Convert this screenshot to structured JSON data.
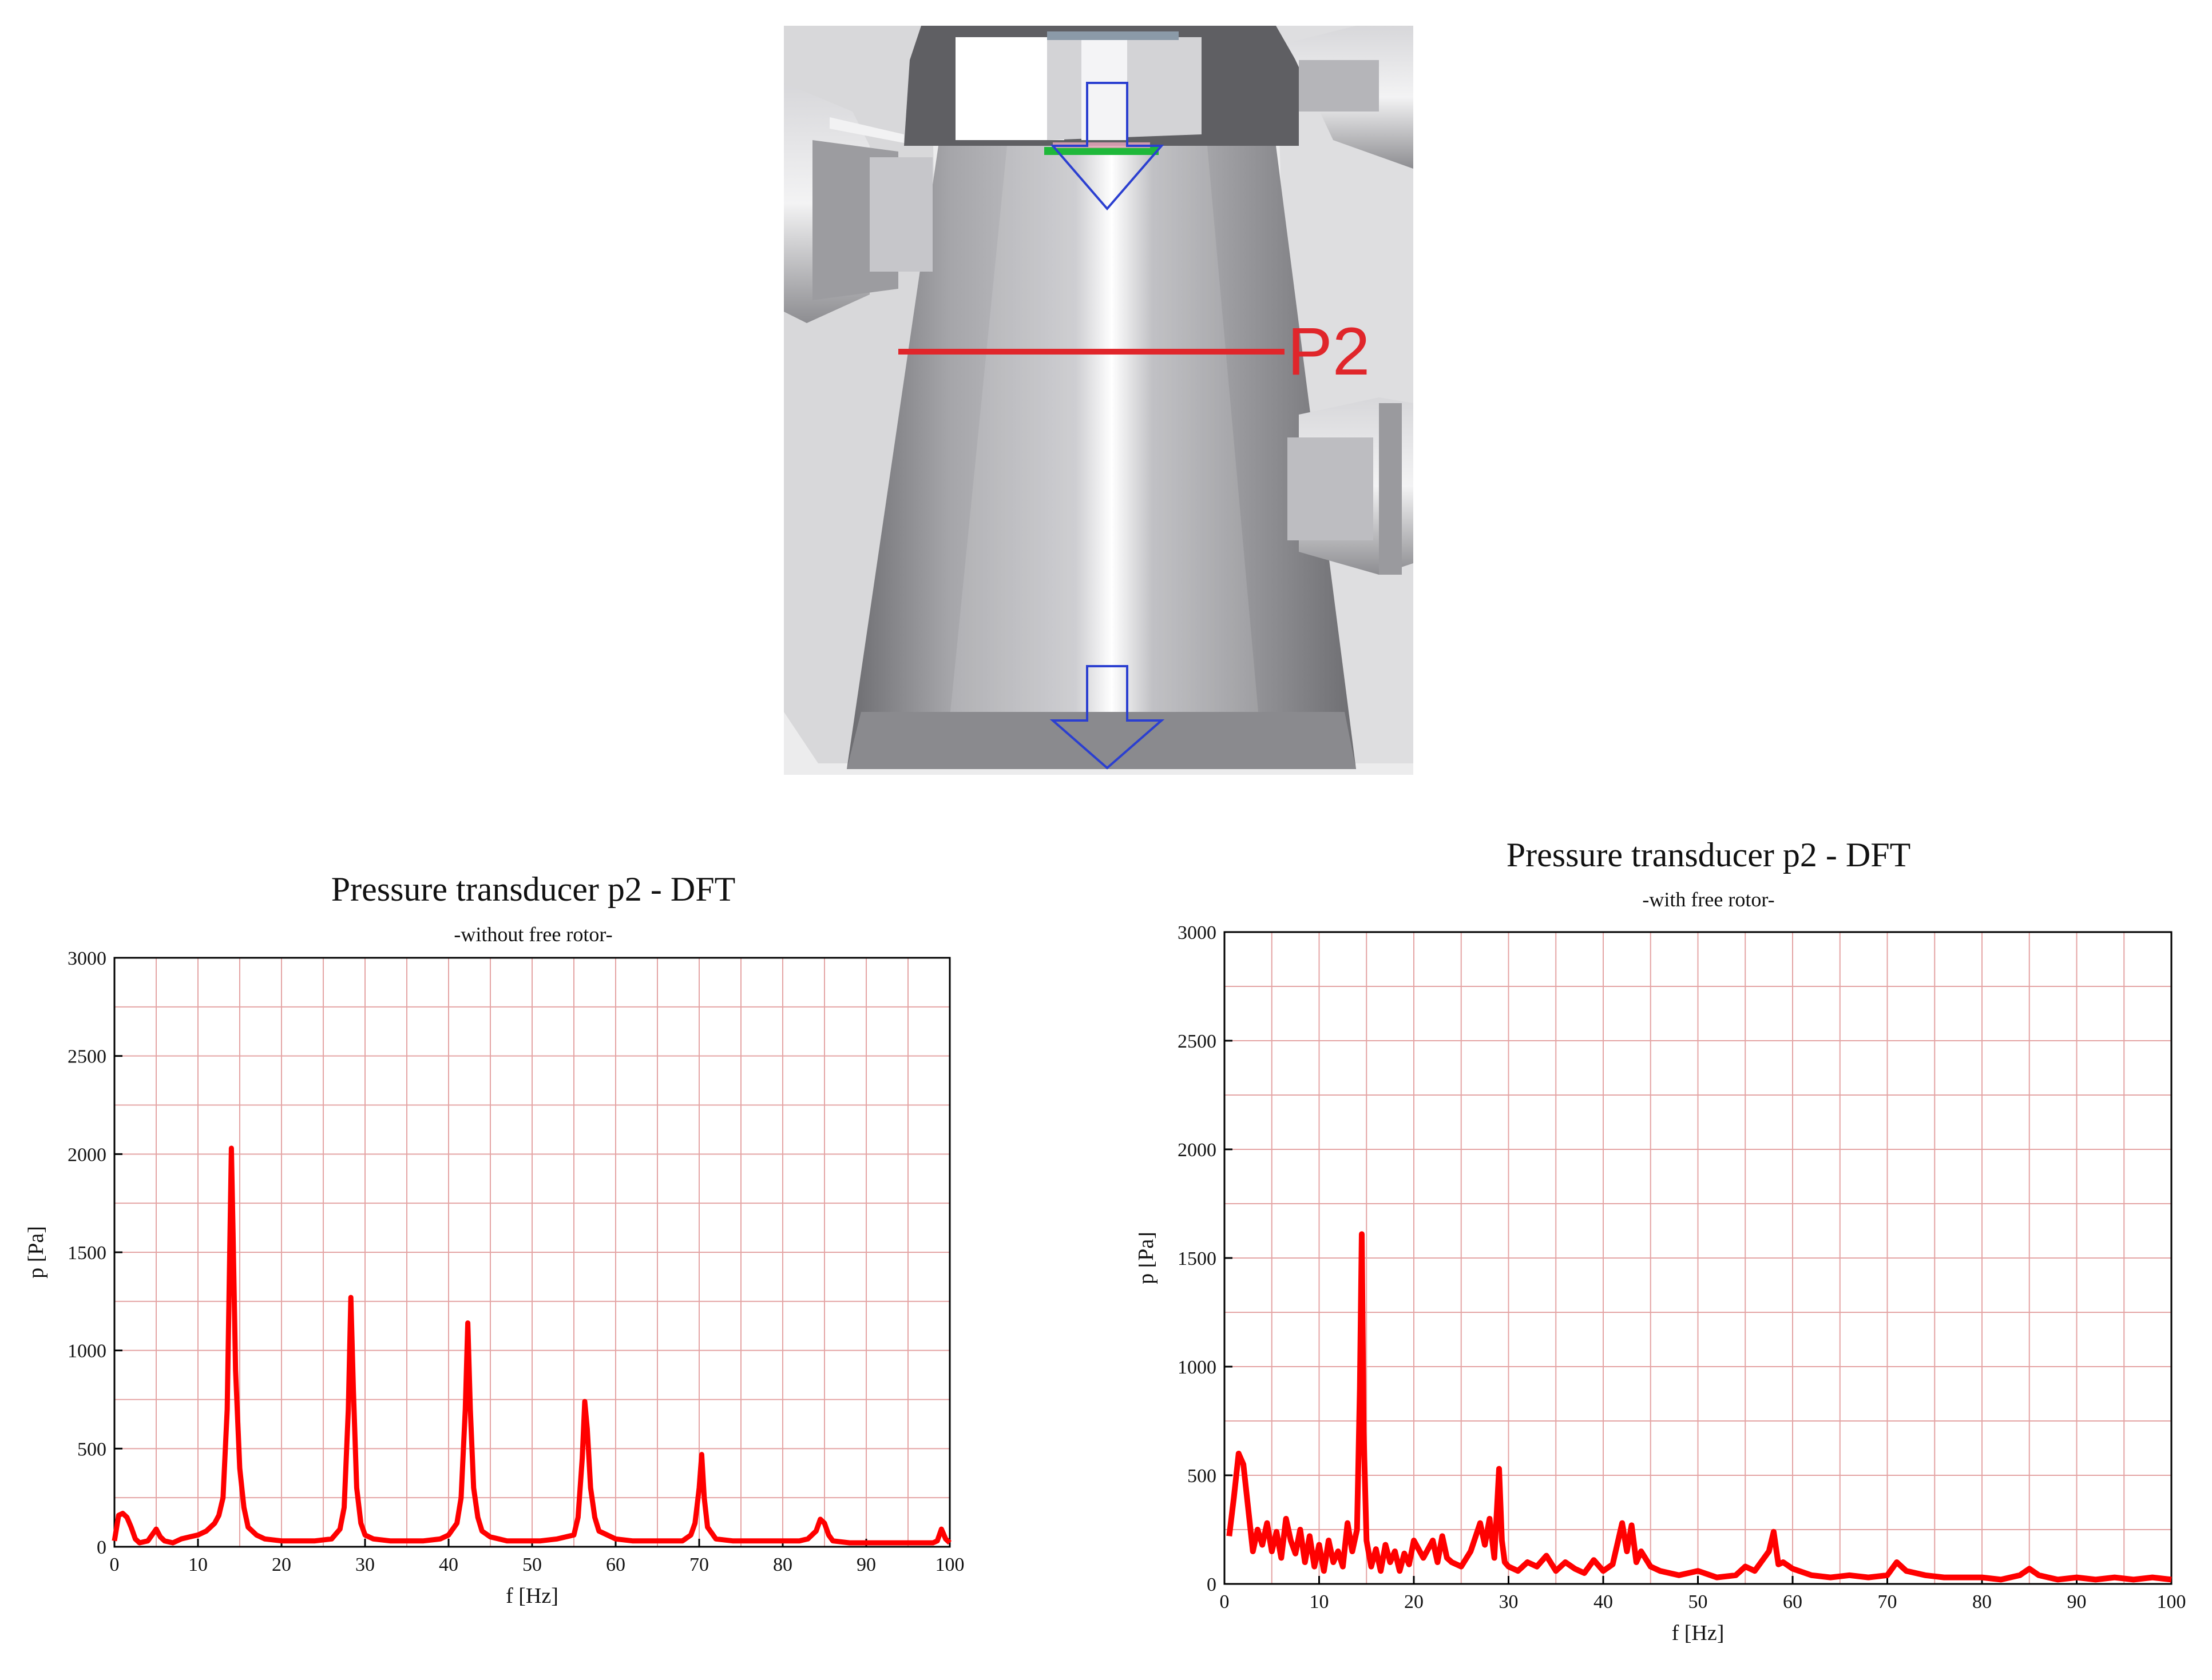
{
  "schematic": {
    "marker_label": "P2",
    "marker_color": "#e0262b",
    "arrow_color": "#2b3fd0",
    "seal_color": "#1fb83a"
  },
  "chart_data": [
    {
      "type": "line",
      "title": "Pressure transducer p2 - DFT",
      "subtitle": "-without free rotor-",
      "xlabel": "f [Hz]",
      "ylabel": "p [Pa]",
      "xlim": [
        0,
        100
      ],
      "ylim": [
        0,
        3000
      ],
      "xticks": [
        0,
        10,
        20,
        30,
        40,
        50,
        60,
        70,
        80,
        90,
        100
      ],
      "yticks": [
        0,
        500,
        1000,
        1500,
        2000,
        2500,
        3000
      ],
      "grid": true,
      "line_color": "#ff0000",
      "series": [
        {
          "x": [
            0,
            0.5,
            1,
            1.5,
            2,
            2.5,
            3,
            4,
            5,
            5.5,
            6,
            7,
            8,
            9,
            10,
            11,
            12,
            12.5,
            13,
            13.5,
            13.8,
            14,
            14.2,
            14.5,
            15,
            15.5,
            16,
            17,
            18,
            20,
            22,
            24,
            26,
            27,
            27.5,
            28,
            28.3,
            28.6,
            29,
            29.5,
            30,
            31,
            33,
            35,
            37,
            39,
            40,
            41,
            41.5,
            42,
            42.3,
            42.6,
            43,
            43.5,
            44,
            45,
            47,
            49,
            51,
            53,
            55,
            55.5,
            56,
            56.3,
            56.6,
            57,
            57.5,
            58,
            60,
            62,
            65,
            68,
            69,
            69.5,
            70,
            70.3,
            70.6,
            71,
            72,
            74,
            76,
            78,
            80,
            82,
            83,
            84,
            84.5,
            85,
            85.5,
            86,
            88,
            90,
            92,
            94,
            96,
            98,
            98.5,
            99,
            99.5,
            100
          ],
          "y": [
            30,
            160,
            170,
            150,
            100,
            40,
            20,
            30,
            90,
            50,
            30,
            20,
            40,
            50,
            60,
            80,
            120,
            160,
            250,
            700,
            1500,
            2030,
            1600,
            900,
            400,
            200,
            100,
            60,
            40,
            30,
            30,
            30,
            40,
            90,
            200,
            700,
            1270,
            800,
            300,
            120,
            60,
            40,
            30,
            30,
            30,
            40,
            60,
            120,
            250,
            700,
            1140,
            700,
            300,
            150,
            80,
            50,
            30,
            30,
            30,
            40,
            60,
            150,
            450,
            740,
            600,
            300,
            150,
            80,
            40,
            30,
            30,
            30,
            60,
            120,
            300,
            470,
            250,
            100,
            40,
            30,
            30,
            30,
            30,
            30,
            40,
            80,
            140,
            120,
            60,
            30,
            20,
            20,
            20,
            20,
            20,
            20,
            30,
            90,
            40,
            20
          ]
        }
      ]
    },
    {
      "type": "line",
      "title": "Pressure transducer p2 - DFT",
      "subtitle": "-with free rotor-",
      "xlabel": "f [Hz]",
      "ylabel": "p [Pa]",
      "xlim": [
        0,
        100
      ],
      "ylim": [
        0,
        3000
      ],
      "xticks": [
        0,
        10,
        20,
        30,
        40,
        50,
        60,
        70,
        80,
        90,
        100
      ],
      "yticks": [
        0,
        500,
        1000,
        1500,
        2000,
        2500,
        3000
      ],
      "grid": true,
      "line_color": "#ff0000",
      "series": [
        {
          "x": [
            0.5,
            1,
            1.5,
            2,
            2.5,
            3,
            3.5,
            4,
            4.5,
            5,
            5.5,
            6,
            6.5,
            7,
            7.5,
            8,
            8.5,
            9,
            9.5,
            10,
            10.5,
            11,
            11.5,
            12,
            12.5,
            13,
            13.5,
            14,
            14.3,
            14.5,
            14.7,
            15,
            15.5,
            16,
            16.5,
            17,
            17.5,
            18,
            18.5,
            19,
            19.5,
            20,
            21,
            22,
            22.5,
            23,
            23.5,
            24,
            25,
            26,
            27,
            27.5,
            28,
            28.5,
            29,
            29.3,
            29.6,
            30,
            31,
            32,
            33,
            34,
            35,
            36,
            37,
            38,
            39,
            40,
            41,
            42,
            42.5,
            43,
            43.5,
            44,
            45,
            46,
            47,
            48,
            50,
            52,
            54,
            55,
            56,
            57,
            57.5,
            58,
            58.5,
            59,
            60,
            62,
            64,
            66,
            68,
            70,
            71,
            72,
            74,
            76,
            78,
            80,
            82,
            84,
            85,
            86,
            87,
            88,
            90,
            92,
            94,
            96,
            98,
            100
          ],
          "y": [
            220,
            400,
            600,
            550,
            350,
            150,
            250,
            180,
            280,
            150,
            240,
            120,
            300,
            200,
            140,
            250,
            100,
            220,
            80,
            180,
            60,
            200,
            100,
            150,
            80,
            280,
            150,
            250,
            900,
            1610,
            700,
            200,
            80,
            160,
            60,
            180,
            100,
            150,
            60,
            140,
            90,
            200,
            120,
            200,
            100,
            220,
            120,
            100,
            80,
            150,
            280,
            180,
            300,
            120,
            530,
            200,
            100,
            80,
            60,
            100,
            80,
            130,
            60,
            100,
            70,
            50,
            110,
            60,
            90,
            280,
            150,
            270,
            100,
            150,
            80,
            60,
            50,
            40,
            60,
            30,
            40,
            80,
            60,
            120,
            150,
            240,
            90,
            100,
            70,
            40,
            30,
            40,
            30,
            40,
            100,
            60,
            40,
            30,
            30,
            30,
            20,
            40,
            70,
            40,
            30,
            20,
            30,
            20,
            30,
            20,
            30,
            20
          ]
        }
      ]
    }
  ]
}
